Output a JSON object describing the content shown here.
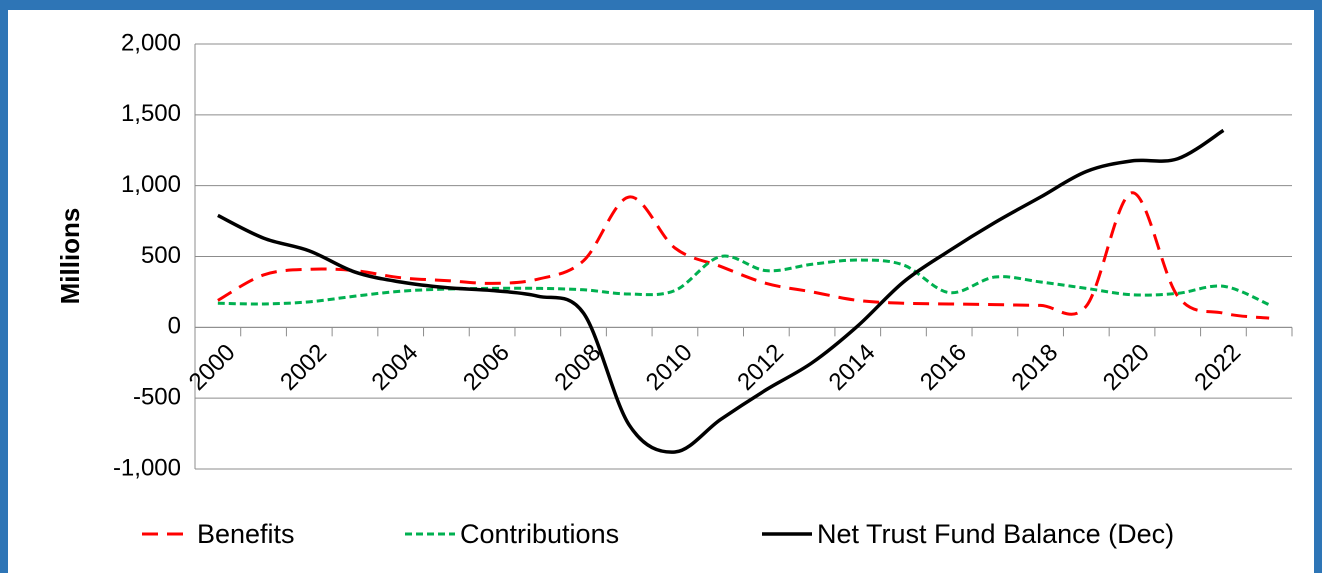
{
  "chart_data": {
    "type": "line",
    "ylabel": "Millions",
    "categories": [
      "2000",
      null,
      "2002",
      null,
      "2004",
      null,
      "2006",
      null,
      "2008",
      null,
      "2010",
      null,
      "2012",
      null,
      "2014",
      null,
      "2016",
      null,
      "2018",
      null,
      "2020",
      null,
      "2022",
      null
    ],
    "series": [
      {
        "name": "Benefits",
        "color": "#ff0000",
        "dash": "dashed",
        "values": [
          190,
          370,
          410,
          400,
          350,
          330,
          310,
          340,
          470,
          920,
          560,
          430,
          310,
          250,
          190,
          170,
          165,
          160,
          155,
          150,
          950,
          220,
          100,
          65
        ]
      },
      {
        "name": "Contributions",
        "color": "#00b050",
        "dash": "dotted",
        "values": [
          170,
          165,
          180,
          220,
          255,
          270,
          275,
          275,
          265,
          235,
          260,
          500,
          400,
          445,
          475,
          440,
          245,
          355,
          320,
          275,
          230,
          240,
          290,
          160
        ]
      },
      {
        "name": "Net Trust Fund Balance (Dec)",
        "color": "#000000",
        "dash": "solid",
        "values": [
          790,
          630,
          540,
          390,
          320,
          280,
          260,
          220,
          100,
          -690,
          -880,
          -650,
          -440,
          -250,
          10,
          320,
          540,
          740,
          920,
          1100,
          1175,
          1190,
          1390,
          null
        ]
      }
    ],
    "ylim": [
      -1000,
      2000
    ],
    "yticks": [
      {
        "value": -1000,
        "label": "-1,000"
      },
      -500,
      0,
      500,
      {
        "value": 1000,
        "label": "1,000"
      },
      {
        "value": 1500,
        "label": "1,500"
      },
      {
        "value": 2000,
        "label": "2,000"
      }
    ],
    "grid": true,
    "legend": "bottom"
  }
}
